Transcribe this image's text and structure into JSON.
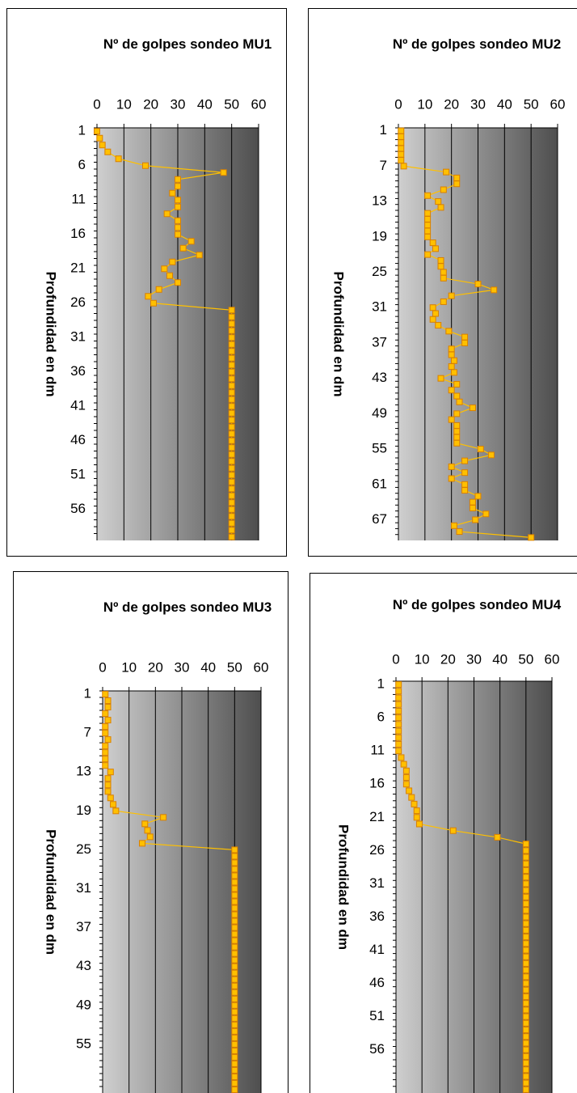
{
  "chart_data": [
    {
      "type": "line",
      "orientation": "horizontal",
      "title": "Nº de golpes sondeo MU1",
      "y_label": "Profundidad en dm",
      "xlim": [
        0,
        60
      ],
      "xticks": [
        0,
        10,
        20,
        30,
        40,
        50,
        60
      ],
      "grid": true,
      "color": "#ffc000",
      "categories": [
        "1",
        null,
        null,
        null,
        null,
        "6",
        null,
        null,
        null,
        null,
        "11",
        null,
        null,
        null,
        null,
        "16",
        null,
        null,
        null,
        null,
        "21",
        null,
        null,
        null,
        null,
        "26",
        null,
        null,
        null,
        null,
        "31",
        null,
        null,
        null,
        null,
        "36",
        null,
        null,
        null,
        null,
        "41",
        null,
        null,
        null,
        null,
        "46",
        null,
        null,
        null,
        null,
        "51",
        null,
        null,
        null,
        null,
        "56",
        null,
        null,
        null,
        null
      ],
      "values": [
        0,
        1,
        2,
        4,
        8,
        18,
        47,
        30,
        30,
        28,
        30,
        30,
        26,
        30,
        30,
        30,
        35,
        32,
        38,
        28,
        25,
        27,
        30,
        23,
        19,
        21,
        50,
        50,
        50,
        50,
        50,
        50,
        50,
        50,
        50,
        50,
        50,
        50,
        50,
        50,
        50,
        50,
        50,
        50,
        50,
        50,
        50,
        50,
        50,
        50,
        50,
        50,
        50,
        50,
        50,
        50,
        50,
        50,
        50,
        50
      ]
    },
    {
      "type": "line",
      "orientation": "horizontal",
      "title": "Nº de golpes sondeo MU2",
      "y_label": "Profundidad en dm",
      "xlim": [
        0,
        60
      ],
      "xticks": [
        0,
        10,
        20,
        30,
        40,
        50,
        60
      ],
      "grid": true,
      "color": "#ffc000",
      "categories": [
        "1",
        null,
        null,
        null,
        null,
        null,
        "7",
        null,
        null,
        null,
        null,
        null,
        "13",
        null,
        null,
        null,
        null,
        null,
        "19",
        null,
        null,
        null,
        null,
        null,
        "25",
        null,
        null,
        null,
        null,
        null,
        "31",
        null,
        null,
        null,
        null,
        null,
        "37",
        null,
        null,
        null,
        null,
        null,
        "43",
        null,
        null,
        null,
        null,
        null,
        "49",
        null,
        null,
        null,
        null,
        null,
        "55",
        null,
        null,
        null,
        null,
        null,
        "61",
        null,
        null,
        null,
        null,
        null,
        "67",
        null,
        null,
        null
      ],
      "values": [
        1,
        1,
        1,
        1,
        1,
        1,
        2,
        18,
        22,
        22,
        17,
        11,
        15,
        16,
        11,
        11,
        11,
        11,
        11,
        13,
        14,
        11,
        16,
        16,
        17,
        17,
        30,
        36,
        20,
        17,
        13,
        14,
        13,
        15,
        19,
        25,
        25,
        20,
        20,
        21,
        20,
        21,
        16,
        22,
        20,
        22,
        23,
        28,
        22,
        20,
        22,
        22,
        22,
        22,
        31,
        35,
        25,
        20,
        25,
        20,
        25,
        25,
        30,
        28,
        28,
        33,
        29,
        21,
        23,
        50
      ]
    },
    {
      "type": "line",
      "orientation": "horizontal",
      "title": "Nº de golpes sondeo MU3",
      "y_label": "Profundidad en dm",
      "xlim": [
        0,
        60
      ],
      "xticks": [
        0,
        10,
        20,
        30,
        40,
        50,
        60
      ],
      "grid": true,
      "color": "#ffc000",
      "categories": [
        "1",
        null,
        null,
        null,
        null,
        null,
        "7",
        null,
        null,
        null,
        null,
        null,
        "13",
        null,
        null,
        null,
        null,
        null,
        "19",
        null,
        null,
        null,
        null,
        null,
        "25",
        null,
        null,
        null,
        null,
        null,
        "31",
        null,
        null,
        null,
        null,
        null,
        "37",
        null,
        null,
        null,
        null,
        null,
        "43",
        null,
        null,
        null,
        null,
        null,
        "49",
        null,
        null,
        null,
        null,
        null,
        "55",
        null,
        null,
        null,
        null,
        null,
        null,
        null
      ],
      "values": [
        1,
        2,
        2,
        1,
        2,
        1,
        1,
        2,
        1,
        1,
        1,
        1,
        3,
        2,
        2,
        2,
        3,
        4,
        5,
        23,
        16,
        17,
        18,
        15,
        50,
        50,
        50,
        50,
        50,
        50,
        50,
        50,
        50,
        50,
        50,
        50,
        50,
        50,
        50,
        50,
        50,
        50,
        50,
        50,
        50,
        50,
        50,
        50,
        50,
        50,
        50,
        50,
        50,
        50,
        50,
        50,
        50,
        50,
        50,
        50,
        50,
        50
      ]
    },
    {
      "type": "line",
      "orientation": "horizontal",
      "title": "Nº de golpes sondeo MU4",
      "y_label": "Profundidad en dm",
      "xlim": [
        0,
        60
      ],
      "xticks": [
        0,
        10,
        20,
        30,
        40,
        50,
        60
      ],
      "grid": true,
      "color": "#ffc000",
      "categories": [
        "1",
        null,
        null,
        null,
        null,
        "6",
        null,
        null,
        null,
        null,
        "11",
        null,
        null,
        null,
        null,
        "16",
        null,
        null,
        null,
        null,
        "21",
        null,
        null,
        null,
        null,
        "26",
        null,
        null,
        null,
        null,
        "31",
        null,
        null,
        null,
        null,
        "36",
        null,
        null,
        null,
        null,
        "41",
        null,
        null,
        null,
        null,
        "46",
        null,
        null,
        null,
        null,
        "51",
        null,
        null,
        null,
        null,
        "56",
        null,
        null,
        null,
        null,
        null,
        null
      ],
      "values": [
        1,
        1,
        1,
        1,
        1,
        1,
        1,
        1,
        1,
        1,
        1,
        2,
        3,
        4,
        4,
        4,
        5,
        6,
        7,
        8,
        8,
        9,
        22,
        39,
        50,
        50,
        50,
        50,
        50,
        50,
        50,
        50,
        50,
        50,
        50,
        50,
        50,
        50,
        50,
        50,
        50,
        50,
        50,
        50,
        50,
        50,
        50,
        50,
        50,
        50,
        50,
        50,
        50,
        50,
        50,
        50,
        50,
        50,
        50,
        50,
        50,
        50
      ]
    }
  ]
}
